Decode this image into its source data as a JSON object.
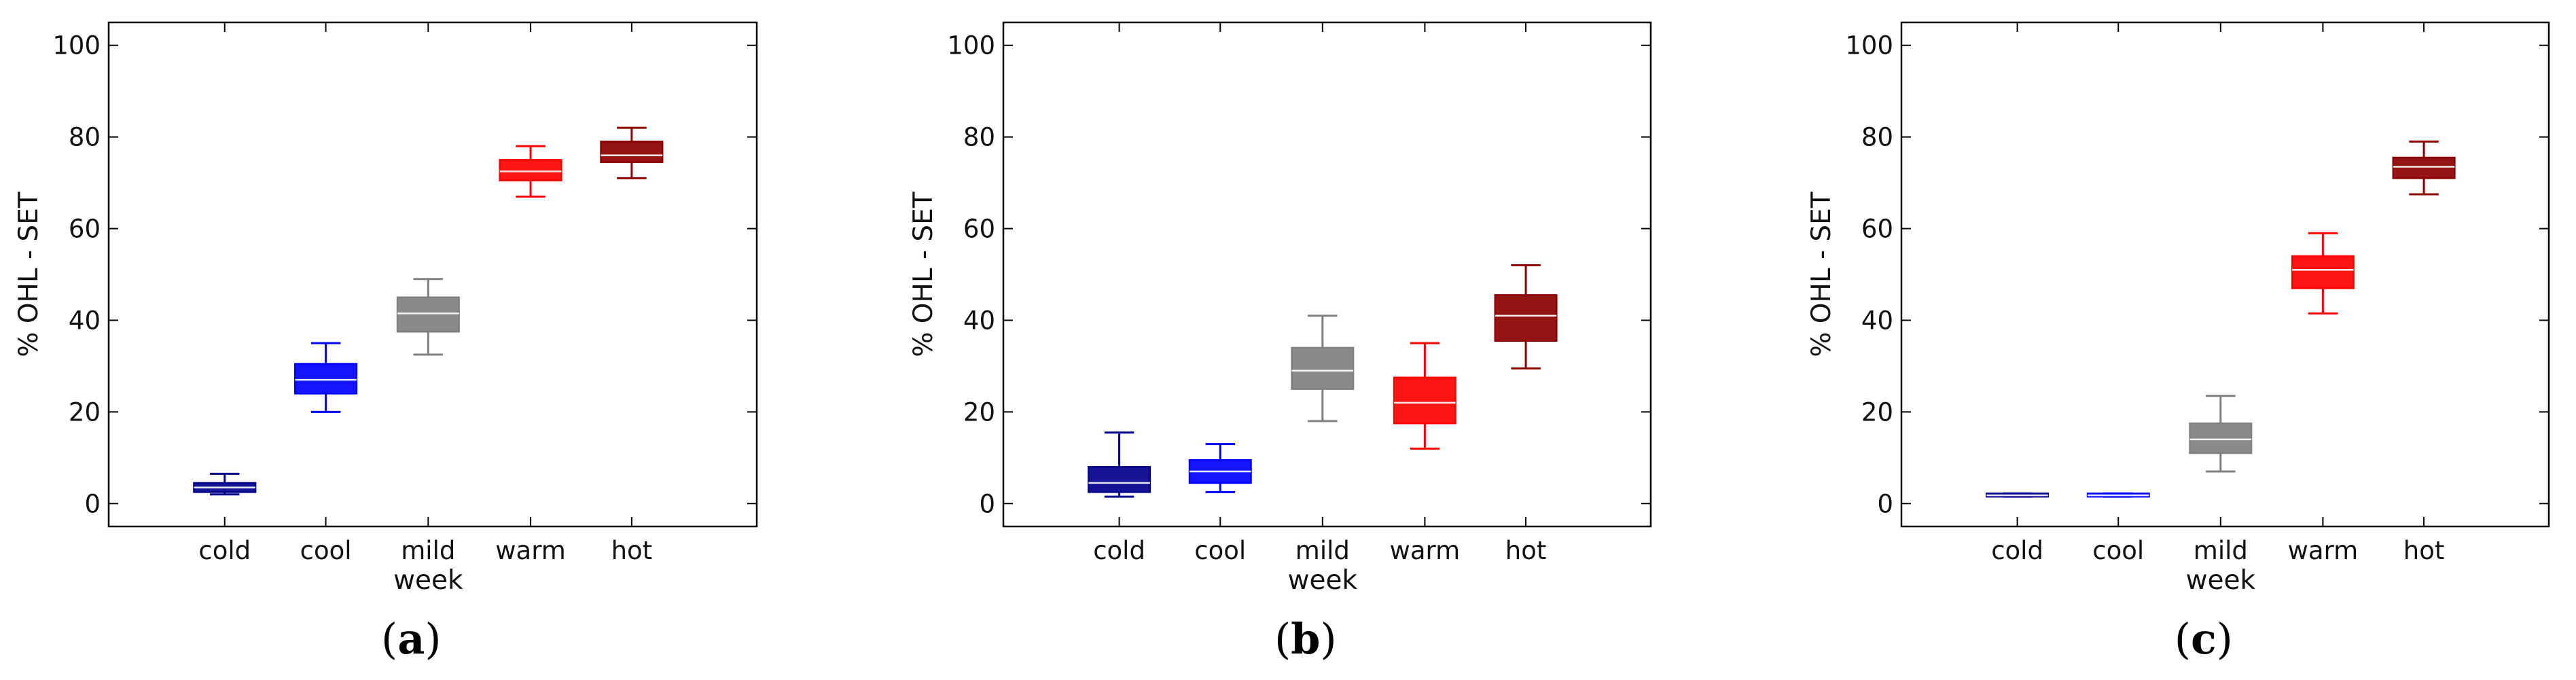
{
  "chart_data": [
    {
      "type": "box",
      "panel_label": "a",
      "xlabel": "week",
      "ylabel": "% OHL - SET",
      "ylim": [
        -5,
        105
      ],
      "yticks": [
        0,
        20,
        40,
        60,
        80,
        100
      ],
      "categories": [
        "cold",
        "cool",
        "mild",
        "warm",
        "hot"
      ],
      "boxes": [
        {
          "category": "cold",
          "whisker_low": 2,
          "q1": 2.5,
          "median": 3.5,
          "q3": 4.5,
          "whisker_high": 6.5,
          "color": "#00008b"
        },
        {
          "category": "cool",
          "whisker_low": 20,
          "q1": 24,
          "median": 27,
          "q3": 30.5,
          "whisker_high": 35,
          "color": "#0000ff"
        },
        {
          "category": "mild",
          "whisker_low": 32.5,
          "q1": 37.5,
          "median": 41.5,
          "q3": 45,
          "whisker_high": 49,
          "color": "#808080"
        },
        {
          "category": "warm",
          "whisker_low": 67,
          "q1": 70.5,
          "median": 72.5,
          "q3": 75,
          "whisker_high": 78,
          "color": "#ff0000"
        },
        {
          "category": "hot",
          "whisker_low": 71,
          "q1": 74.5,
          "median": 76,
          "q3": 79,
          "whisker_high": 82,
          "color": "#8b0000"
        }
      ]
    },
    {
      "type": "box",
      "panel_label": "b",
      "xlabel": "week",
      "ylabel": "% OHL - SET",
      "ylim": [
        -5,
        105
      ],
      "yticks": [
        0,
        20,
        40,
        60,
        80,
        100
      ],
      "categories": [
        "cold",
        "cool",
        "mild",
        "warm",
        "hot"
      ],
      "boxes": [
        {
          "category": "cold",
          "whisker_low": 1.5,
          "q1": 2.5,
          "median": 4.5,
          "q3": 8,
          "whisker_high": 15.5,
          "color": "#00008b"
        },
        {
          "category": "cool",
          "whisker_low": 2.5,
          "q1": 4.5,
          "median": 7,
          "q3": 9.5,
          "whisker_high": 13,
          "color": "#0000ff"
        },
        {
          "category": "mild",
          "whisker_low": 18,
          "q1": 25,
          "median": 29,
          "q3": 34,
          "whisker_high": 41,
          "color": "#808080"
        },
        {
          "category": "warm",
          "whisker_low": 12,
          "q1": 17.5,
          "median": 22,
          "q3": 27.5,
          "whisker_high": 35,
          "color": "#ff0000"
        },
        {
          "category": "hot",
          "whisker_low": 29.5,
          "q1": 35.5,
          "median": 41,
          "q3": 45.5,
          "whisker_high": 52,
          "color": "#8b0000"
        }
      ]
    },
    {
      "type": "box",
      "panel_label": "c",
      "xlabel": "week",
      "ylabel": "% OHL - SET",
      "ylim": [
        -5,
        105
      ],
      "yticks": [
        0,
        20,
        40,
        60,
        80,
        100
      ],
      "categories": [
        "cold",
        "cool",
        "mild",
        "warm",
        "hot"
      ],
      "boxes": [
        {
          "category": "cold",
          "whisker_low": 1.5,
          "q1": 1.5,
          "median": 1.8,
          "q3": 2.2,
          "whisker_high": 2.2,
          "color": "#00008b"
        },
        {
          "category": "cool",
          "whisker_low": 1.5,
          "q1": 1.5,
          "median": 1.8,
          "q3": 2.2,
          "whisker_high": 2.2,
          "color": "#0000ff"
        },
        {
          "category": "mild",
          "whisker_low": 7,
          "q1": 11,
          "median": 14,
          "q3": 17.5,
          "whisker_high": 23.5,
          "color": "#808080"
        },
        {
          "category": "warm",
          "whisker_low": 41.5,
          "q1": 47,
          "median": 51,
          "q3": 54,
          "whisker_high": 59,
          "color": "#ff0000"
        },
        {
          "category": "hot",
          "whisker_low": 67.5,
          "q1": 71,
          "median": 73.5,
          "q3": 75.5,
          "whisker_high": 79,
          "color": "#8b0000"
        }
      ]
    }
  ]
}
